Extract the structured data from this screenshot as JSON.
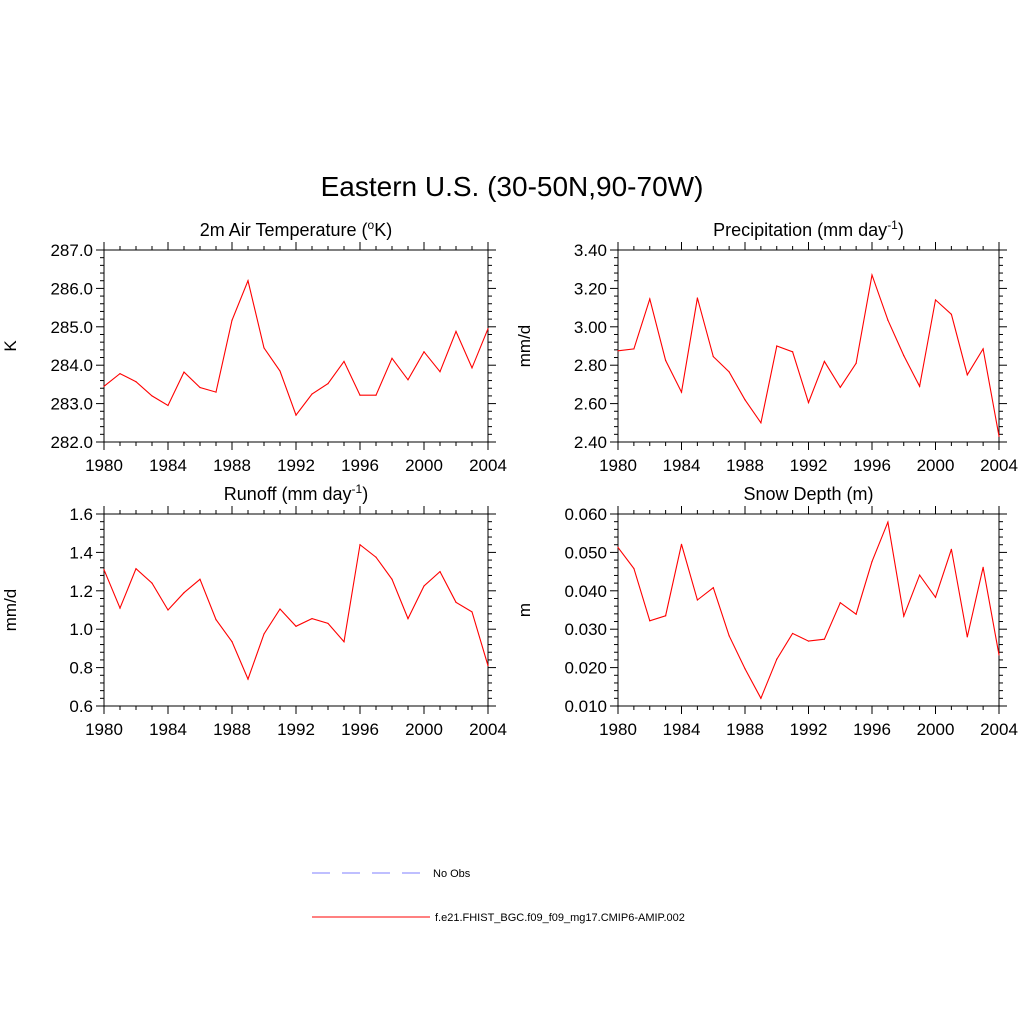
{
  "figure_title": "Eastern U.S. (30-50N,90-70W)",
  "colors": {
    "model": "#ff0000",
    "obs": "#9999ff",
    "axis": "#000000"
  },
  "legend": {
    "obs_label": "No Obs",
    "model_label": "f.e21.FHIST_BGC.f09_f09_mg17.CMIP6-AMIP.002"
  },
  "chart_data": [
    {
      "type": "line",
      "title_prefix": "2m Air Temperature (",
      "title_sup": "o",
      "title_suffix": "K)",
      "ylabel": "K",
      "xlim": [
        1980,
        2004
      ],
      "ylim": [
        282.0,
        287.0
      ],
      "yticks": [
        "282.0",
        "283.0",
        "284.0",
        "285.0",
        "286.0",
        "287.0"
      ],
      "ytick_values": [
        282,
        283,
        284,
        285,
        286,
        287
      ],
      "xticks": [
        "1980",
        "1984",
        "1988",
        "1992",
        "1996",
        "2000",
        "2004"
      ],
      "xtick_values": [
        1980,
        1984,
        1988,
        1992,
        1996,
        2000,
        2004
      ],
      "series": [
        {
          "name": "f.e21.FHIST_BGC.f09_f09_mg17.CMIP6-AMIP.002",
          "x": [
            1980,
            1981,
            1982,
            1983,
            1984,
            1985,
            1986,
            1987,
            1988,
            1989,
            1990,
            1991,
            1992,
            1993,
            1994,
            1995,
            1996,
            1997,
            1998,
            1999,
            2000,
            2001,
            2002,
            2003,
            2004
          ],
          "values": [
            283.45,
            283.78,
            283.57,
            283.2,
            282.95,
            283.82,
            283.42,
            283.3,
            285.17,
            286.2,
            284.45,
            283.85,
            282.7,
            283.25,
            283.52,
            284.1,
            283.22,
            283.22,
            284.18,
            283.62,
            284.35,
            283.83,
            284.88,
            283.93,
            284.95
          ]
        }
      ]
    },
    {
      "type": "line",
      "title_prefix": "Precipitation (mm day",
      "title_sup": "-1",
      "title_suffix": ")",
      "ylabel": "mm/d",
      "xlim": [
        1980,
        2004
      ],
      "ylim": [
        2.4,
        3.4
      ],
      "yticks": [
        "2.40",
        "2.60",
        "2.80",
        "3.00",
        "3.20",
        "3.40"
      ],
      "ytick_values": [
        2.4,
        2.6,
        2.8,
        3.0,
        3.2,
        3.4
      ],
      "xticks": [
        "1980",
        "1984",
        "1988",
        "1992",
        "1996",
        "2000",
        "2004"
      ],
      "xtick_values": [
        1980,
        1984,
        1988,
        1992,
        1996,
        2000,
        2004
      ],
      "series": [
        {
          "name": "f.e21.FHIST_BGC.f09_f09_mg17.CMIP6-AMIP.002",
          "x": [
            1980,
            1981,
            1982,
            1983,
            1984,
            1985,
            1986,
            1987,
            1988,
            1989,
            1990,
            1991,
            1992,
            1993,
            1994,
            1995,
            1996,
            1997,
            1998,
            1999,
            2000,
            2001,
            2002,
            2003,
            2004
          ],
          "values": [
            2.875,
            2.885,
            3.145,
            2.825,
            2.66,
            3.15,
            2.845,
            2.765,
            2.62,
            2.5,
            2.9,
            2.87,
            2.605,
            2.82,
            2.685,
            2.81,
            3.27,
            3.035,
            2.85,
            2.69,
            3.14,
            3.065,
            2.75,
            2.885,
            2.43
          ]
        }
      ]
    },
    {
      "type": "line",
      "title_prefix": "Runoff (mm day",
      "title_sup": "-1",
      "title_suffix": ")",
      "ylabel": "mm/d",
      "xlim": [
        1980,
        2004
      ],
      "ylim": [
        0.6,
        1.6
      ],
      "yticks": [
        "0.6",
        "0.8",
        "1.0",
        "1.2",
        "1.4",
        "1.6"
      ],
      "ytick_values": [
        0.6,
        0.8,
        1.0,
        1.2,
        1.4,
        1.6
      ],
      "xticks": [
        "1980",
        "1984",
        "1988",
        "1992",
        "1996",
        "2000",
        "2004"
      ],
      "xtick_values": [
        1980,
        1984,
        1988,
        1992,
        1996,
        2000,
        2004
      ],
      "series": [
        {
          "name": "f.e21.FHIST_BGC.f09_f09_mg17.CMIP6-AMIP.002",
          "x": [
            1980,
            1981,
            1982,
            1983,
            1984,
            1985,
            1986,
            1987,
            1988,
            1989,
            1990,
            1991,
            1992,
            1993,
            1994,
            1995,
            1996,
            1997,
            1998,
            1999,
            2000,
            2001,
            2002,
            2003,
            2004
          ],
          "values": [
            1.31,
            1.11,
            1.315,
            1.24,
            1.1,
            1.19,
            1.26,
            1.05,
            0.935,
            0.74,
            0.975,
            1.105,
            1.015,
            1.055,
            1.03,
            0.935,
            1.44,
            1.375,
            1.26,
            1.055,
            1.225,
            1.3,
            1.14,
            1.09,
            0.81
          ]
        }
      ]
    },
    {
      "type": "line",
      "title_prefix": "Snow Depth (m)",
      "title_sup": "",
      "title_suffix": "",
      "ylabel": "m",
      "xlim": [
        1980,
        2004
      ],
      "ylim": [
        0.01,
        0.06
      ],
      "yticks": [
        "0.010",
        "0.020",
        "0.030",
        "0.040",
        "0.050",
        "0.060"
      ],
      "ytick_values": [
        0.01,
        0.02,
        0.03,
        0.04,
        0.05,
        0.06
      ],
      "xticks": [
        "1980",
        "1984",
        "1988",
        "1992",
        "1996",
        "2000",
        "2004"
      ],
      "xtick_values": [
        1980,
        1984,
        1988,
        1992,
        1996,
        2000,
        2004
      ],
      "series": [
        {
          "name": "f.e21.FHIST_BGC.f09_f09_mg17.CMIP6-AMIP.002",
          "x": [
            1980,
            1981,
            1982,
            1983,
            1984,
            1985,
            1986,
            1987,
            1988,
            1989,
            1990,
            1991,
            1992,
            1993,
            1994,
            1995,
            1996,
            1997,
            1998,
            1999,
            2000,
            2001,
            2002,
            2003,
            2004
          ],
          "values": [
            0.0513,
            0.0458,
            0.0322,
            0.0335,
            0.0521,
            0.0376,
            0.0408,
            0.0283,
            0.0197,
            0.012,
            0.0222,
            0.0289,
            0.0269,
            0.0274,
            0.0369,
            0.0339,
            0.0476,
            0.0579,
            0.0334,
            0.0441,
            0.0383,
            0.0508,
            0.028,
            0.0461,
            0.0233
          ]
        }
      ]
    }
  ]
}
